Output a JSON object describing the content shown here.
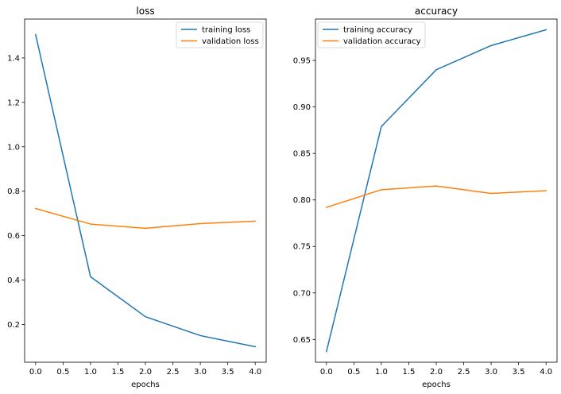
{
  "chart_data": [
    {
      "type": "line",
      "title": "loss",
      "xlabel": "epochs",
      "ylabel": "",
      "x": [
        0,
        1,
        2,
        3,
        4
      ],
      "xlim": [
        -0.2,
        4.2
      ],
      "ylim": [
        0.03,
        1.575
      ],
      "xticks": [
        "0.0",
        "0.5",
        "1.0",
        "1.5",
        "2.0",
        "2.5",
        "3.0",
        "3.5",
        "4.0"
      ],
      "yticks": [
        "0.2",
        "0.4",
        "0.6",
        "0.8",
        "1.0",
        "1.2",
        "1.4"
      ],
      "legend": "upper right",
      "series": [
        {
          "name": "training loss",
          "color": "#1f77b4",
          "values": [
            1.505,
            0.415,
            0.235,
            0.15,
            0.1
          ]
        },
        {
          "name": "validation loss",
          "color": "#ff7f0e",
          "values": [
            0.722,
            0.652,
            0.633,
            0.654,
            0.665
          ]
        }
      ]
    },
    {
      "type": "line",
      "title": "accuracy",
      "xlabel": "epochs",
      "ylabel": "",
      "x": [
        0,
        1,
        2,
        3,
        4
      ],
      "xlim": [
        -0.2,
        4.2
      ],
      "ylim": [
        0.6255,
        0.9945
      ],
      "xticks": [
        "0.0",
        "0.5",
        "1.0",
        "1.5",
        "2.0",
        "2.5",
        "3.0",
        "3.5",
        "4.0"
      ],
      "yticks": [
        "0.65",
        "0.70",
        "0.75",
        "0.80",
        "0.85",
        "0.90",
        "0.95"
      ],
      "legend": "upper left",
      "series": [
        {
          "name": "training accuracy",
          "color": "#1f77b4",
          "values": [
            0.637,
            0.879,
            0.94,
            0.966,
            0.983
          ]
        },
        {
          "name": "validation accuracy",
          "color": "#ff7f0e",
          "values": [
            0.792,
            0.811,
            0.815,
            0.807,
            0.81
          ]
        }
      ]
    }
  ]
}
